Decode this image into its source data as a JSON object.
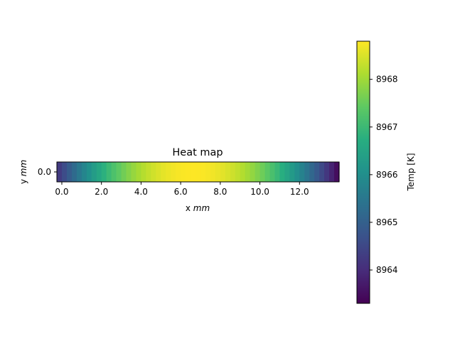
{
  "chart_data": {
    "type": "heatmap",
    "title": "Heat map",
    "xlabel": {
      "prefix": "x ",
      "unit": "mm"
    },
    "ylabel": {
      "prefix": "y ",
      "unit": "mm"
    },
    "x_range": [
      -0.25,
      14.0
    ],
    "y_range": [
      -0.5,
      0.5
    ],
    "x_ticks": [
      "0.0",
      "2.0",
      "4.0",
      "6.0",
      "8.0",
      "10.0",
      "12.0"
    ],
    "x_tick_values": [
      0,
      2,
      4,
      6,
      8,
      10,
      12
    ],
    "y_ticks": [
      "0.0"
    ],
    "y_tick_values": [
      0
    ],
    "colormap": "viridis",
    "profile": {
      "x_center": 6.6,
      "x_extent": [
        -0.25,
        14.0
      ],
      "peak": 8968.8,
      "min": 8963.3,
      "cells": 57,
      "shape": "parabolic"
    },
    "colorbar": {
      "label": "Temp [K]",
      "range": [
        8963.3,
        8968.8
      ],
      "ticks": [
        "8964",
        "8965",
        "8966",
        "8967",
        "8968"
      ],
      "tick_values": [
        8964,
        8965,
        8966,
        8967,
        8968
      ]
    }
  }
}
